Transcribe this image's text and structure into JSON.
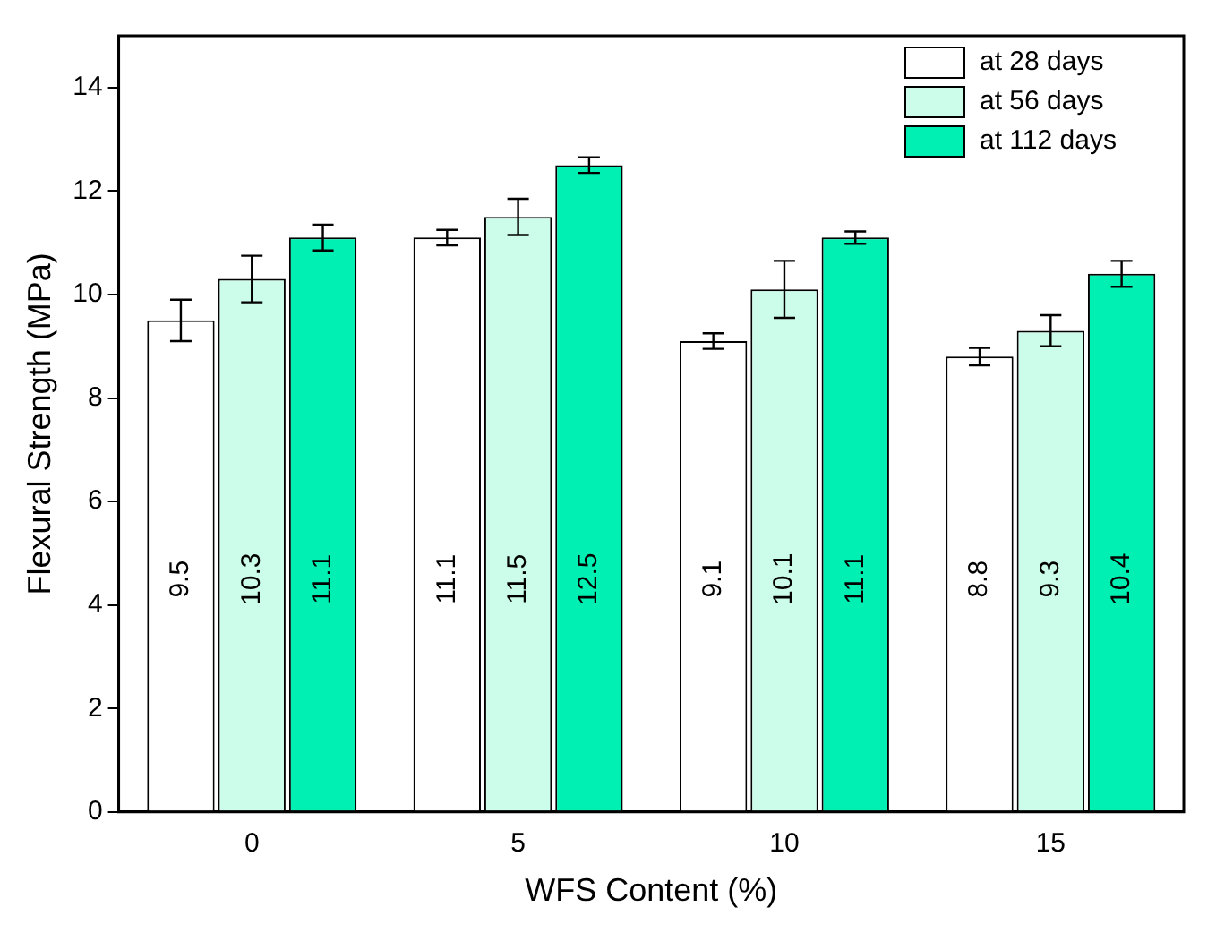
{
  "chart_data": {
    "type": "bar",
    "xlabel": "WFS Content (%)",
    "ylabel": "Flexural Strength (MPa)",
    "categories": [
      "0",
      "5",
      "10",
      "15"
    ],
    "series": [
      {
        "name": "at 28 days",
        "color": "#ffffff",
        "values": [
          9.5,
          11.1,
          9.1,
          8.8
        ],
        "errors": [
          0.4,
          0.15,
          0.15,
          0.17
        ]
      },
      {
        "name": "at 56 days",
        "color": "#ccfcea",
        "values": [
          10.3,
          11.5,
          10.1,
          9.3
        ],
        "errors": [
          0.45,
          0.35,
          0.55,
          0.3
        ]
      },
      {
        "name": "at 112 days",
        "color": "#00f0b4",
        "values": [
          11.1,
          12.5,
          11.1,
          10.4
        ],
        "errors": [
          0.25,
          0.15,
          0.12,
          0.25
        ]
      }
    ],
    "ylim": [
      0,
      15
    ],
    "yticks": [
      0,
      2,
      4,
      6,
      8,
      10,
      12,
      14
    ],
    "grid": false,
    "legend": "top right",
    "data_labels": true
  }
}
